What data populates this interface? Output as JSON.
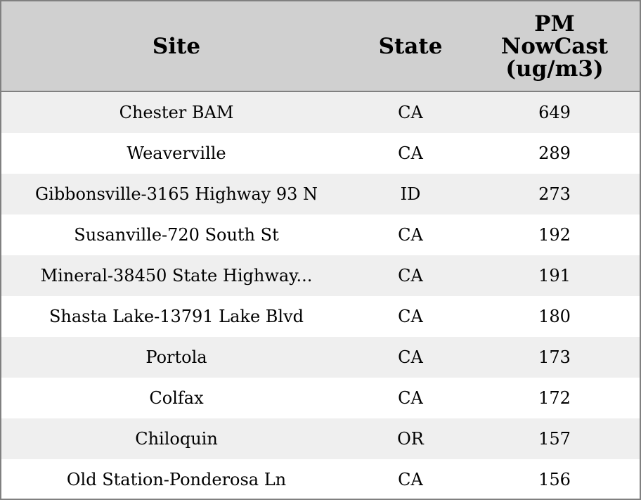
{
  "chart_data": {
    "type": "table",
    "columns": [
      "Site",
      "State",
      "PM NowCast (ug/m3)"
    ],
    "header_lines": [
      [
        "Site"
      ],
      [
        "State"
      ],
      [
        "PM",
        "NowCast",
        "(ug/m3)"
      ]
    ],
    "rows": [
      [
        "Chester BAM",
        "CA",
        "649"
      ],
      [
        "Weaverville",
        "CA",
        "289"
      ],
      [
        "Gibbonsville-3165 Highway 93 N",
        "ID",
        "273"
      ],
      [
        "Susanville-720 South St",
        "CA",
        "192"
      ],
      [
        "Mineral-38450 State Highway...",
        "CA",
        "191"
      ],
      [
        "Shasta Lake-13791 Lake Blvd",
        "CA",
        "180"
      ],
      [
        "Portola",
        "CA",
        "173"
      ],
      [
        "Colfax",
        "CA",
        "172"
      ],
      [
        "Chiloquin",
        "OR",
        "157"
      ],
      [
        "Old Station-Ponderosa Ln",
        "CA",
        "156"
      ]
    ],
    "colors": {
      "header_bg": "#d0d0d0",
      "stripe": "#efefef",
      "border": "#808080"
    }
  }
}
